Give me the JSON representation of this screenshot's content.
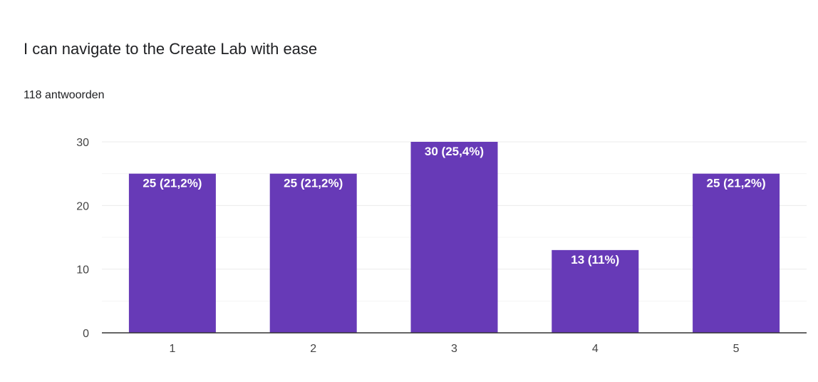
{
  "header": {
    "title": "I can navigate to the Create Lab with ease",
    "subtitle": "118 antwoorden"
  },
  "colors": {
    "bar": "#673ab7",
    "gridline": "#ebebeb",
    "baseline": "#333333"
  },
  "chart_data": {
    "type": "bar",
    "title": "I can navigate to the Create Lab with ease",
    "xlabel": "",
    "ylabel": "",
    "categories": [
      "1",
      "2",
      "3",
      "4",
      "5"
    ],
    "values": [
      25,
      25,
      30,
      13,
      25
    ],
    "data_labels": [
      "25 (21,2%)",
      "25 (21,2%)",
      "30 (25,4%)",
      "13 (11%)",
      "25 (21,2%)"
    ],
    "ylim": [
      0,
      30
    ],
    "yticks": [
      0,
      10,
      20,
      30
    ],
    "grid": true,
    "legend": "none"
  }
}
